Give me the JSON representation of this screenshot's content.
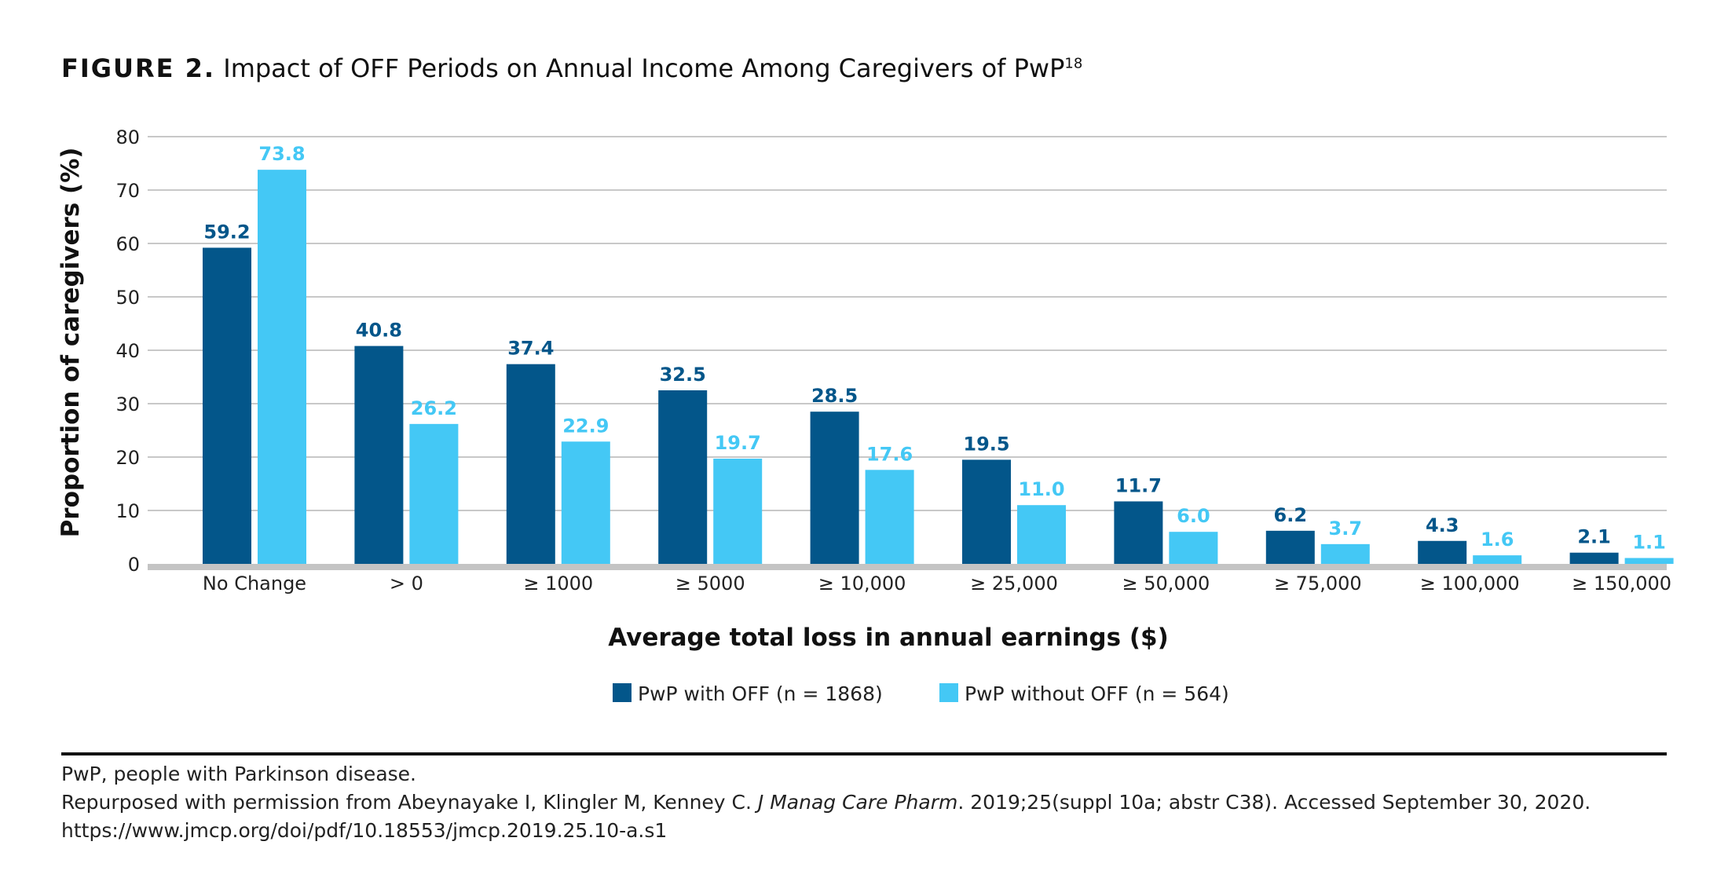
{
  "figure": {
    "label": "FIGURE 2.",
    "title": "Impact of OFF Periods on Annual Income Among Caregivers of PwP",
    "title_superscript": "18"
  },
  "chart_data": {
    "type": "bar",
    "categories": [
      "No Change",
      "> 0",
      "≥ 1000",
      "≥ 5000",
      "≥ 10,000",
      "≥ 25,000",
      "≥ 50,000",
      "≥ 75,000",
      "≥ 100,000",
      "≥ 150,000"
    ],
    "series": [
      {
        "name": "PwP with OFF (n = 1868)",
        "color": "#03568a",
        "values": [
          59.2,
          40.8,
          37.4,
          32.5,
          28.5,
          19.5,
          11.7,
          6.2,
          4.3,
          2.1
        ],
        "labels": [
          "59.2",
          "40.8",
          "37.4",
          "32.5",
          "28.5",
          "19.5",
          "11.7",
          "6.2",
          "4.3",
          "2.1"
        ]
      },
      {
        "name": "PwP without OFF (n = 564)",
        "color": "#44c8f5",
        "values": [
          73.8,
          26.2,
          22.9,
          19.7,
          17.6,
          11.0,
          6.0,
          3.7,
          1.6,
          1.1
        ],
        "labels": [
          "73.8",
          "26.2",
          "22.9",
          "19.7",
          "17.6",
          "11.0",
          "6.0",
          "3.7",
          "1.6",
          "1.1"
        ]
      }
    ],
    "xlabel": "Average total loss in annual earnings ($)",
    "ylabel": "Proportion of caregivers (%)",
    "ylim": [
      0,
      80
    ],
    "yticks": [
      "0",
      "10",
      "20",
      "30",
      "40",
      "50",
      "60",
      "70",
      "80"
    ],
    "grid": true,
    "legend": "bottom-center",
    "gridline_color": "#c8c8c8",
    "axis_color": "#c4c4c4"
  },
  "footnotes": {
    "abbrev": "PwP, people with Parkinson disease.",
    "source_prefix": "Repurposed with permission from Abeynayake I, Klingler M, Kenney C. ",
    "source_journal": "J Manag Care Pharm",
    "source_suffix": ". 2019;25(suppl 10a; abstr C38). Accessed September 30, 2020.",
    "url": "https://www.jmcp.org/doi/pdf/10.18553/jmcp.2019.25.10-a.s1"
  }
}
